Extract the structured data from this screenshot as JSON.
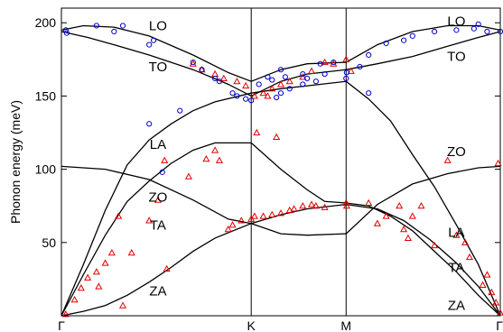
{
  "chart_data": {
    "type": "line",
    "title": "",
    "xlabel": "",
    "ylabel": "Phonon energy (meV)",
    "ylim": [
      0,
      210
    ],
    "yticks": [
      50,
      100,
      150,
      200
    ],
    "xticks": [
      "Γ",
      "K",
      "M",
      "Γ"
    ],
    "x_positions": {
      "Γ": 0,
      "K": 0.4325,
      "M": 0.6487,
      "Γ_end": 1
    },
    "grid": false,
    "line_color": "#000000",
    "branch_labels": [
      {
        "text": "LO",
        "x": 0.22,
        "y": 198
      },
      {
        "text": "TO",
        "x": 0.22,
        "y": 170
      },
      {
        "text": "LA",
        "x": 0.22,
        "y": 117
      },
      {
        "text": "ZO",
        "x": 0.22,
        "y": 81
      },
      {
        "text": "TA",
        "x": 0.22,
        "y": 62
      },
      {
        "text": "ZA",
        "x": 0.22,
        "y": 17
      },
      {
        "text": "LO",
        "x": 0.9,
        "y": 201
      },
      {
        "text": "TO",
        "x": 0.9,
        "y": 177
      },
      {
        "text": "ZO",
        "x": 0.9,
        "y": 112
      },
      {
        "text": "LA",
        "x": 0.9,
        "y": 57
      },
      {
        "text": "TA",
        "x": 0.9,
        "y": 33
      },
      {
        "text": "ZA",
        "x": 0.9,
        "y": 7
      }
    ],
    "series": [
      {
        "kind": "line",
        "values": [
          [
            0,
            195
          ],
          [
            0.05,
            198
          ],
          [
            0.12,
            197
          ],
          [
            0.2,
            191
          ],
          [
            0.3,
            178
          ],
          [
            0.38,
            166
          ],
          [
            0.4325,
            160
          ],
          [
            0.5,
            168
          ],
          [
            0.56,
            172
          ],
          [
            0.6487,
            173
          ],
          [
            0.72,
            185
          ],
          [
            0.8,
            194
          ],
          [
            0.88,
            198
          ],
          [
            0.95,
            198
          ],
          [
            1,
            195
          ]
        ]
      },
      {
        "kind": "line",
        "values": [
          [
            0,
            194
          ],
          [
            0.06,
            190
          ],
          [
            0.12,
            185
          ],
          [
            0.2,
            178
          ],
          [
            0.3,
            168
          ],
          [
            0.38,
            158
          ],
          [
            0.4325,
            150
          ],
          [
            0.5,
            160
          ],
          [
            0.56,
            165
          ],
          [
            0.6487,
            168
          ],
          [
            0.72,
            172
          ],
          [
            0.8,
            177
          ],
          [
            0.88,
            184
          ],
          [
            0.95,
            190
          ],
          [
            1,
            194
          ]
        ]
      },
      {
        "kind": "line",
        "values": [
          [
            0,
            0
          ],
          [
            0.05,
            35
          ],
          [
            0.1,
            72
          ],
          [
            0.15,
            103
          ],
          [
            0.2,
            120
          ],
          [
            0.25,
            131
          ],
          [
            0.3,
            140
          ],
          [
            0.35,
            146
          ],
          [
            0.4325,
            152
          ],
          [
            0.5,
            155
          ],
          [
            0.56,
            157
          ],
          [
            0.6487,
            160
          ],
          [
            0.7,
            148
          ],
          [
            0.75,
            133
          ],
          [
            0.8,
            110
          ],
          [
            0.85,
            88
          ],
          [
            0.9,
            62
          ],
          [
            0.95,
            35
          ],
          [
            1,
            0
          ]
        ]
      },
      {
        "kind": "line",
        "values": [
          [
            0,
            0
          ],
          [
            0.05,
            28
          ],
          [
            0.1,
            55
          ],
          [
            0.15,
            78
          ],
          [
            0.2,
            92
          ],
          [
            0.25,
            104
          ],
          [
            0.3,
            113
          ],
          [
            0.35,
            118
          ],
          [
            0.4325,
            118
          ],
          [
            0.5,
            100
          ],
          [
            0.56,
            86
          ],
          [
            0.6,
            78
          ],
          [
            0.6487,
            77
          ],
          [
            0.7,
            75
          ],
          [
            0.75,
            68
          ],
          [
            0.8,
            58
          ],
          [
            0.85,
            44
          ],
          [
            0.9,
            30
          ],
          [
            0.95,
            14
          ],
          [
            1,
            0
          ]
        ]
      },
      {
        "kind": "line",
        "values": [
          [
            0,
            102
          ],
          [
            0.1,
            100
          ],
          [
            0.2,
            93
          ],
          [
            0.3,
            79
          ],
          [
            0.38,
            66
          ],
          [
            0.4325,
            63
          ],
          [
            0.5,
            56
          ],
          [
            0.56,
            55
          ],
          [
            0.6487,
            56
          ],
          [
            0.72,
            76
          ],
          [
            0.8,
            90
          ],
          [
            0.88,
            97
          ],
          [
            0.95,
            101
          ],
          [
            1,
            102
          ]
        ]
      },
      {
        "kind": "line",
        "values": [
          [
            0,
            0
          ],
          [
            0.05,
            3
          ],
          [
            0.1,
            7
          ],
          [
            0.15,
            14
          ],
          [
            0.2,
            23
          ],
          [
            0.25,
            33
          ],
          [
            0.3,
            44
          ],
          [
            0.35,
            53
          ],
          [
            0.4325,
            63
          ],
          [
            0.5,
            69
          ],
          [
            0.56,
            73
          ],
          [
            0.6487,
            76
          ],
          [
            0.72,
            73
          ],
          [
            0.78,
            65
          ],
          [
            0.84,
            52
          ],
          [
            0.9,
            36
          ],
          [
            0.95,
            20
          ],
          [
            1,
            0
          ]
        ]
      },
      {
        "kind": "triangles",
        "color": "#e00000",
        "values": [
          [
            0.01,
            1
          ],
          [
            0.03,
            11
          ],
          [
            0.045,
            19
          ],
          [
            0.06,
            26
          ],
          [
            0.08,
            30
          ],
          [
            0.085,
            20
          ],
          [
            0.1,
            36
          ],
          [
            0.115,
            43
          ],
          [
            0.13,
            68
          ],
          [
            0.14,
            7
          ],
          [
            0.16,
            43
          ],
          [
            0.2,
            65
          ],
          [
            0.22,
            79
          ],
          [
            0.235,
            106
          ],
          [
            0.24,
            32
          ],
          [
            0.29,
            95
          ],
          [
            0.33,
            107
          ],
          [
            0.35,
            113
          ],
          [
            0.36,
            106
          ],
          [
            0.38,
            59
          ],
          [
            0.39,
            62
          ],
          [
            0.41,
            65
          ],
          [
            0.4325,
            66
          ],
          [
            0.44,
            68
          ],
          [
            0.445,
            125
          ],
          [
            0.46,
            68
          ],
          [
            0.47,
            150
          ],
          [
            0.48,
            69
          ],
          [
            0.49,
            122
          ],
          [
            0.5,
            70
          ],
          [
            0.52,
            72
          ],
          [
            0.53,
            73
          ],
          [
            0.55,
            75
          ],
          [
            0.57,
            76
          ],
          [
            0.58,
            75
          ],
          [
            0.6,
            74
          ],
          [
            0.6487,
            77
          ],
          [
            0.65,
            75
          ],
          [
            0.66,
            167
          ],
          [
            0.7,
            77
          ],
          [
            0.72,
            63
          ],
          [
            0.74,
            68
          ],
          [
            0.77,
            75
          ],
          [
            0.78,
            59
          ],
          [
            0.79,
            53
          ],
          [
            0.8,
            68
          ],
          [
            0.82,
            75
          ],
          [
            0.85,
            48
          ],
          [
            0.88,
            106
          ],
          [
            0.9,
            55
          ],
          [
            0.92,
            50
          ],
          [
            0.93,
            40
          ],
          [
            0.96,
            21
          ],
          [
            0.97,
            28
          ],
          [
            0.98,
            16
          ],
          [
            0.99,
            9
          ],
          [
            1,
            2
          ],
          [
            0.995,
            104
          ],
          [
            0.6487,
            175
          ],
          [
            0.62,
            172
          ],
          [
            0.6,
            173
          ],
          [
            0.57,
            167
          ],
          [
            0.55,
            163
          ],
          [
            0.52,
            160
          ],
          [
            0.5,
            158
          ],
          [
            0.48,
            155
          ],
          [
            0.46,
            152
          ],
          [
            0.44,
            150
          ],
          [
            0.42,
            157
          ],
          [
            0.4,
            160
          ],
          [
            0.37,
            162
          ],
          [
            0.35,
            165
          ],
          [
            0.32,
            168
          ],
          [
            0.3,
            172
          ]
        ]
      },
      {
        "kind": "circles",
        "color": "#0000cc",
        "values": [
          [
            0.01,
            195
          ],
          [
            0.012,
            193
          ],
          [
            0.08,
            198
          ],
          [
            0.12,
            194
          ],
          [
            0.14,
            198
          ],
          [
            0.2,
            185
          ],
          [
            0.21,
            188
          ],
          [
            0.3,
            173
          ],
          [
            0.32,
            168
          ],
          [
            0.35,
            162
          ],
          [
            0.36,
            160
          ],
          [
            0.39,
            152
          ],
          [
            0.4,
            150
          ],
          [
            0.42,
            148
          ],
          [
            0.4325,
            147
          ],
          [
            0.45,
            158
          ],
          [
            0.47,
            163
          ],
          [
            0.48,
            161
          ],
          [
            0.49,
            149
          ],
          [
            0.5,
            152
          ],
          [
            0.51,
            163
          ],
          [
            0.52,
            155
          ],
          [
            0.55,
            158
          ],
          [
            0.56,
            162
          ],
          [
            0.58,
            160
          ],
          [
            0.6,
            165
          ],
          [
            0.6487,
            162
          ],
          [
            0.65,
            166
          ],
          [
            0.68,
            170
          ],
          [
            0.7,
            178
          ],
          [
            0.74,
            186
          ],
          [
            0.78,
            188
          ],
          [
            0.8,
            191
          ],
          [
            0.85,
            194
          ],
          [
            0.9,
            195
          ],
          [
            0.94,
            196
          ],
          [
            0.95,
            199
          ],
          [
            0.97,
            194
          ],
          [
            1,
            194
          ],
          [
            0.2,
            131
          ],
          [
            0.23,
            98
          ],
          [
            0.27,
            140
          ],
          [
            0.5,
            168
          ],
          [
            0.55,
            165
          ],
          [
            0.59,
            172
          ],
          [
            0.62,
            173
          ],
          [
            0.7,
            152
          ]
        ]
      }
    ]
  }
}
